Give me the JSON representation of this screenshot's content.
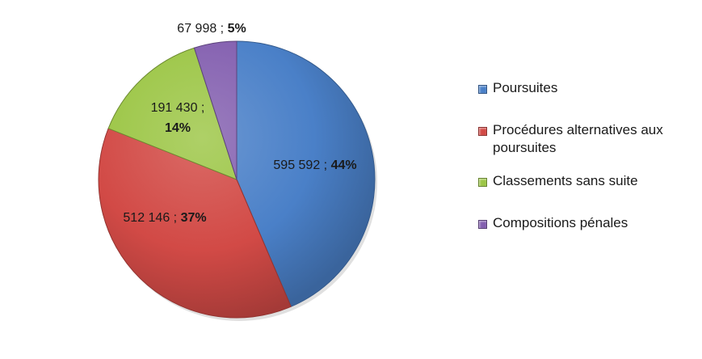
{
  "chart_data": {
    "type": "pie",
    "slices": [
      {
        "label": "Poursuites",
        "value": 595592,
        "value_text": "595 592",
        "percent_text": "44%",
        "color": "#4a80c8"
      },
      {
        "label": "Procédures alternatives aux poursuites",
        "value": 512146,
        "value_text": "512 146",
        "percent_text": "37%",
        "color": "#d24a46"
      },
      {
        "label": "Classements sans suite",
        "value": 191430,
        "value_text": "191 430",
        "percent_text": "14%",
        "color": "#9cc646"
      },
      {
        "label": "Compositions pénales",
        "value": 67998,
        "value_text": "67 998",
        "percent_text": "5%",
        "color": "#8460b0"
      }
    ],
    "legend_position": "right",
    "separator": " ; "
  }
}
